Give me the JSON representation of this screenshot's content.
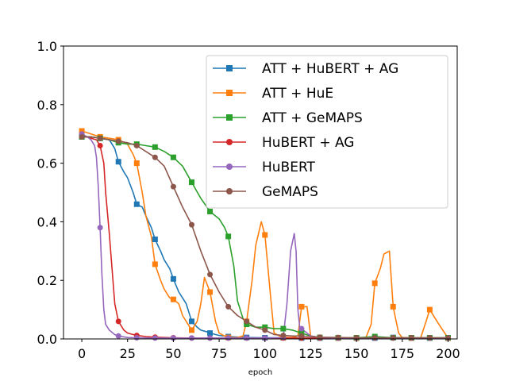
{
  "chart_data": {
    "type": "line",
    "title": "",
    "xlabel": "epoch",
    "ylabel": "",
    "xlim": [
      -10,
      205
    ],
    "ylim": [
      0,
      1.0
    ],
    "xticks": [
      0,
      25,
      50,
      75,
      100,
      125,
      150,
      175,
      200
    ],
    "yticks": [
      0.0,
      0.2,
      0.4,
      0.6,
      0.8,
      1.0
    ],
    "xtick_labels": [
      "0",
      "25",
      "50",
      "75",
      "100",
      "125",
      "150",
      "175",
      "200"
    ],
    "ytick_labels": [
      "0.0",
      "0.2",
      "0.4",
      "0.6",
      "0.8",
      "1.0"
    ],
    "grid": false,
    "legend_position": "top-right",
    "series": [
      {
        "name": "ATT + HuBERT + AG",
        "color": "#1f77b4",
        "marker": "square",
        "x": [
          0,
          5,
          10,
          15,
          18,
          20,
          23,
          25,
          28,
          30,
          33,
          35,
          38,
          40,
          43,
          45,
          48,
          50,
          53,
          55,
          57,
          60,
          63,
          65,
          68,
          70,
          75,
          80,
          90,
          100,
          110,
          120,
          130,
          140,
          150,
          160,
          170,
          180,
          190,
          200
        ],
        "y": [
          0.69,
          0.69,
          0.685,
          0.68,
          0.65,
          0.605,
          0.57,
          0.55,
          0.5,
          0.46,
          0.45,
          0.42,
          0.38,
          0.34,
          0.3,
          0.27,
          0.24,
          0.205,
          0.16,
          0.14,
          0.12,
          0.06,
          0.04,
          0.03,
          0.025,
          0.02,
          0.012,
          0.008,
          0.005,
          0.004,
          0.004,
          0.003,
          0.003,
          0.003,
          0.003,
          0.003,
          0.005,
          0.003,
          0.003,
          0.003
        ]
      },
      {
        "name": "ATT + HuE",
        "color": "#ff7f0e",
        "marker": "square",
        "x": [
          0,
          5,
          10,
          15,
          20,
          25,
          28,
          30,
          33,
          35,
          38,
          40,
          43,
          45,
          48,
          50,
          53,
          55,
          58,
          60,
          63,
          65,
          67,
          70,
          73,
          75,
          78,
          80,
          85,
          88,
          90,
          93,
          95,
          98,
          100,
          103,
          105,
          108,
          110,
          115,
          118,
          120,
          123,
          125,
          130,
          140,
          150,
          155,
          158,
          160,
          163,
          165,
          168,
          170,
          173,
          175,
          180,
          185,
          188,
          190,
          193,
          195,
          200
        ],
        "y": [
          0.71,
          0.7,
          0.69,
          0.685,
          0.68,
          0.665,
          0.63,
          0.6,
          0.5,
          0.42,
          0.35,
          0.255,
          0.2,
          0.17,
          0.14,
          0.135,
          0.12,
          0.08,
          0.05,
          0.03,
          0.06,
          0.12,
          0.21,
          0.16,
          0.06,
          0.02,
          0.01,
          0.005,
          0.005,
          0.01,
          0.06,
          0.2,
          0.32,
          0.4,
          0.355,
          0.15,
          0.02,
          0.01,
          0.005,
          0.005,
          0.01,
          0.11,
          0.11,
          0.01,
          0.005,
          0.003,
          0.003,
          0.003,
          0.05,
          0.19,
          0.24,
          0.29,
          0.3,
          0.11,
          0.02,
          0.005,
          0.003,
          0.003,
          0.06,
          0.1,
          0.07,
          0.05,
          0.003
        ]
      },
      {
        "name": "ATT + GeMAPS",
        "color": "#2ca02c",
        "marker": "square",
        "x": [
          0,
          5,
          10,
          15,
          20,
          25,
          30,
          35,
          40,
          45,
          50,
          55,
          60,
          65,
          70,
          75,
          78,
          80,
          83,
          85,
          88,
          90,
          95,
          100,
          105,
          110,
          115,
          120,
          125,
          130,
          140,
          150,
          160,
          170,
          180,
          190,
          200
        ],
        "y": [
          0.69,
          0.69,
          0.685,
          0.68,
          0.67,
          0.665,
          0.665,
          0.66,
          0.655,
          0.64,
          0.62,
          0.59,
          0.535,
          0.48,
          0.435,
          0.41,
          0.38,
          0.35,
          0.25,
          0.13,
          0.07,
          0.05,
          0.04,
          0.04,
          0.035,
          0.035,
          0.03,
          0.02,
          0.01,
          0.005,
          0.004,
          0.004,
          0.008,
          0.004,
          0.004,
          0.004,
          0.004
        ]
      },
      {
        "name": "HuBERT + AG",
        "color": "#d62728",
        "marker": "circle",
        "x": [
          0,
          3,
          5,
          8,
          10,
          12,
          13,
          15,
          17,
          18,
          20,
          23,
          25,
          30,
          35,
          40,
          45,
          50,
          60,
          70,
          80,
          90,
          100,
          110,
          120,
          130,
          140,
          150,
          160,
          170,
          180,
          190,
          200
        ],
        "y": [
          0.69,
          0.69,
          0.685,
          0.68,
          0.66,
          0.6,
          0.5,
          0.36,
          0.2,
          0.12,
          0.06,
          0.03,
          0.02,
          0.012,
          0.008,
          0.006,
          0.005,
          0.004,
          0.003,
          0.003,
          0.003,
          0.003,
          0.003,
          0.003,
          0.003,
          0.003,
          0.003,
          0.003,
          0.003,
          0.003,
          0.003,
          0.003,
          0.003
        ]
      },
      {
        "name": "HuBERT",
        "color": "#9467bd",
        "marker": "circle",
        "x": [
          0,
          3,
          5,
          7,
          8,
          9,
          10,
          11,
          12,
          13,
          15,
          18,
          20,
          25,
          30,
          40,
          50,
          60,
          70,
          80,
          90,
          100,
          110,
          112,
          114,
          116,
          117,
          118,
          119,
          120,
          125,
          130,
          140,
          150,
          160,
          170,
          180,
          190,
          200
        ],
        "y": [
          0.7,
          0.69,
          0.68,
          0.66,
          0.62,
          0.52,
          0.38,
          0.22,
          0.1,
          0.05,
          0.03,
          0.015,
          0.01,
          0.005,
          0.004,
          0.003,
          0.003,
          0.003,
          0.003,
          0.003,
          0.003,
          0.003,
          0.005,
          0.12,
          0.3,
          0.36,
          0.3,
          0.1,
          0.04,
          0.035,
          0.01,
          0.005,
          0.003,
          0.003,
          0.003,
          0.003,
          0.003,
          0.003,
          0.003
        ]
      },
      {
        "name": "GeMAPS",
        "color": "#8c564b",
        "marker": "circle",
        "x": [
          0,
          5,
          10,
          15,
          20,
          25,
          30,
          35,
          40,
          45,
          50,
          55,
          60,
          65,
          70,
          75,
          80,
          85,
          90,
          95,
          100,
          105,
          110,
          115,
          120,
          125,
          130,
          140,
          150,
          160,
          170,
          180,
          190,
          200
        ],
        "y": [
          0.69,
          0.69,
          0.685,
          0.68,
          0.675,
          0.67,
          0.66,
          0.64,
          0.62,
          0.59,
          0.52,
          0.45,
          0.39,
          0.3,
          0.22,
          0.16,
          0.11,
          0.08,
          0.06,
          0.04,
          0.03,
          0.015,
          0.012,
          0.01,
          0.01,
          0.008,
          0.006,
          0.005,
          0.004,
          0.004,
          0.004,
          0.004,
          0.004,
          0.004
        ]
      }
    ]
  }
}
